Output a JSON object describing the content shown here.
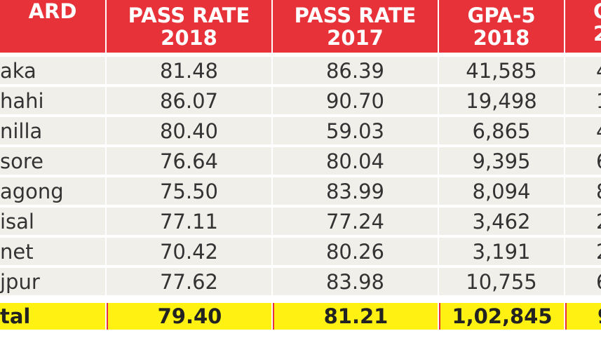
{
  "chart_data": {
    "type": "table",
    "columns": [
      "ARD",
      "PASS RATE 2018",
      "PASS RATE 2017",
      "GPA-5 2018",
      "G 2"
    ],
    "header": [
      {
        "line1": "ARD",
        "line2": ""
      },
      {
        "line1": "PASS RATE",
        "line2": "2018"
      },
      {
        "line1": "PASS RATE",
        "line2": "2017"
      },
      {
        "line1": "GPA-5",
        "line2": "2018"
      },
      {
        "line1": "G",
        "line2": "2"
      }
    ],
    "rows": [
      [
        "aka",
        "81.48",
        "86.39",
        "41,585",
        "4"
      ],
      [
        "hahi",
        "86.07",
        "90.70",
        "19,498",
        "1"
      ],
      [
        "nilla",
        "80.40",
        "59.03",
        "6,865",
        "4"
      ],
      [
        "sore",
        "76.64",
        "80.04",
        "9,395",
        "6"
      ],
      [
        "agong",
        "75.50",
        "83.99",
        "8,094",
        "8"
      ],
      [
        "isal",
        "77.11",
        "77.24",
        "3,462",
        "2"
      ],
      [
        "net",
        "70.42",
        "80.26",
        "3,191",
        "2"
      ],
      [
        "jpur",
        "77.62",
        "83.98",
        "10,755",
        "6"
      ]
    ],
    "total": [
      "tal",
      "79.40",
      "81.21",
      "1,02,845",
      "9"
    ]
  },
  "colors": {
    "header": "#e8323a",
    "body": "#f1efe9",
    "total": "#fff212"
  }
}
